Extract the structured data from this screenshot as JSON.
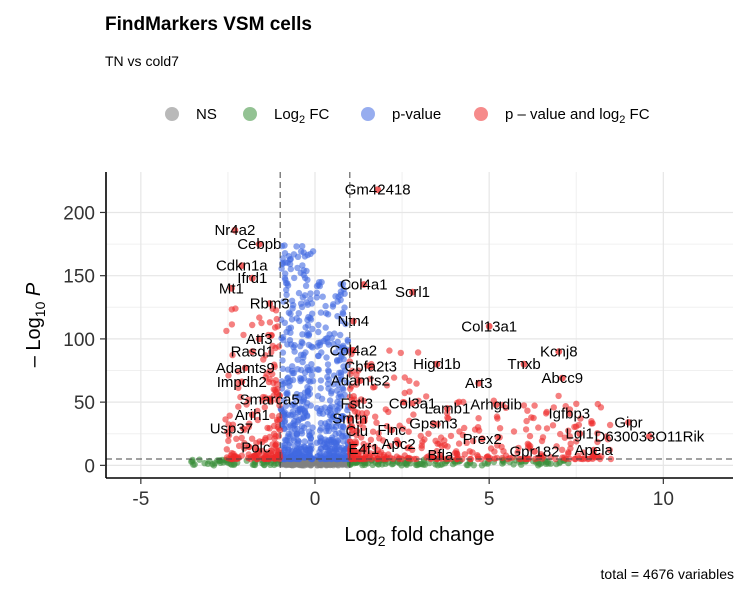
{
  "title": "FindMarkers VSM cells",
  "subtitle": "TN vs cold7",
  "caption": "total = 4676 variables",
  "chart_data": {
    "type": "scatter",
    "title": "FindMarkers VSM cells",
    "subtitle": "TN vs cold7",
    "xlabel": "Log2 fold change",
    "ylabel": "-Log10 P",
    "xlim": [
      -6,
      12
    ],
    "ylim": [
      -10,
      232
    ],
    "x_ticks": [
      -5,
      0,
      5,
      10
    ],
    "y_ticks": [
      0,
      50,
      100,
      150,
      200
    ],
    "fc_cutoff": 1,
    "p_cutoff_neglog10": 5,
    "grid": true,
    "legend_position": "top",
    "colors": {
      "NS": "#808080",
      "Log2FC": "#3b8f3b",
      "pvalue": "#4169e1",
      "both": "#ee2c2c"
    },
    "legend": [
      {
        "key": "NS",
        "label": "NS"
      },
      {
        "key": "Log2FC",
        "label": "Log",
        "sub": "2",
        "suffix": " FC"
      },
      {
        "key": "pvalue",
        "label": "p-value"
      },
      {
        "key": "both",
        "label": "p – value and log",
        "sub": "2",
        "suffix": " FC"
      }
    ],
    "labeled_genes": [
      {
        "name": "Gm42418",
        "x": 1.8,
        "y": 218,
        "color": "both"
      },
      {
        "name": "Nr4a2",
        "x": -2.3,
        "y": 186,
        "color": "both"
      },
      {
        "name": "Cebpb",
        "x": -1.6,
        "y": 175,
        "color": "both"
      },
      {
        "name": "Cdkn1a",
        "x": -2.1,
        "y": 158,
        "color": "both"
      },
      {
        "name": "Ifrd1",
        "x": -1.8,
        "y": 148,
        "color": "both"
      },
      {
        "name": "Mt1",
        "x": -2.4,
        "y": 140,
        "color": "both"
      },
      {
        "name": "Rbm3",
        "x": -1.3,
        "y": 128,
        "color": "both"
      },
      {
        "name": "Atf3",
        "x": -1.6,
        "y": 100,
        "color": "both"
      },
      {
        "name": "Rasd1",
        "x": -1.8,
        "y": 90,
        "color": "both"
      },
      {
        "name": "Adamts9",
        "x": -2.0,
        "y": 77,
        "color": "both"
      },
      {
        "name": "Impdh2",
        "x": -2.1,
        "y": 66,
        "color": "both"
      },
      {
        "name": "Smarca5",
        "x": -1.3,
        "y": 52,
        "color": "both"
      },
      {
        "name": "Arih1",
        "x": -1.8,
        "y": 40,
        "color": "both"
      },
      {
        "name": "Usp37",
        "x": -2.4,
        "y": 29,
        "color": "both"
      },
      {
        "name": "Polc",
        "x": -1.7,
        "y": 14,
        "color": "both"
      },
      {
        "name": "Col4a1",
        "x": 1.4,
        "y": 143,
        "color": "both"
      },
      {
        "name": "Sorl1",
        "x": 2.8,
        "y": 137,
        "color": "both"
      },
      {
        "name": "Ntn4",
        "x": 1.1,
        "y": 114,
        "color": "both"
      },
      {
        "name": "Col4a2",
        "x": 1.1,
        "y": 91,
        "color": "both"
      },
      {
        "name": "Cbfa2t3",
        "x": 1.6,
        "y": 78,
        "color": "both"
      },
      {
        "name": "Adamts2",
        "x": 1.3,
        "y": 67,
        "color": "both"
      },
      {
        "name": "Fstl3",
        "x": 1.2,
        "y": 49,
        "color": "both"
      },
      {
        "name": "Col3a1",
        "x": 2.8,
        "y": 49,
        "color": "both"
      },
      {
        "name": "Smtn",
        "x": 1.0,
        "y": 37,
        "color": "both"
      },
      {
        "name": "Flnc",
        "x": 2.2,
        "y": 28,
        "color": "both"
      },
      {
        "name": "Clu",
        "x": 1.2,
        "y": 27,
        "color": "both"
      },
      {
        "name": "Apc2",
        "x": 2.4,
        "y": 17,
        "color": "both"
      },
      {
        "name": "E4f1",
        "x": 1.4,
        "y": 13,
        "color": "both"
      },
      {
        "name": "Bfla",
        "x": 3.6,
        "y": 8,
        "color": "both"
      },
      {
        "name": "Higd1b",
        "x": 3.5,
        "y": 80,
        "color": "both"
      },
      {
        "name": "Lamb1",
        "x": 3.8,
        "y": 45,
        "color": "both"
      },
      {
        "name": "Gpsm3",
        "x": 3.4,
        "y": 33,
        "color": "both"
      },
      {
        "name": "Prex2",
        "x": 4.8,
        "y": 21,
        "color": "both"
      },
      {
        "name": "Col13a1",
        "x": 5.0,
        "y": 110,
        "color": "both"
      },
      {
        "name": "Art3",
        "x": 4.7,
        "y": 65,
        "color": "both"
      },
      {
        "name": "Arhgdib",
        "x": 5.2,
        "y": 48,
        "color": "both"
      },
      {
        "name": "Tnxb",
        "x": 6.0,
        "y": 80,
        "color": "both"
      },
      {
        "name": "Kcnj8",
        "x": 7.0,
        "y": 90,
        "color": "both"
      },
      {
        "name": "Abcc9",
        "x": 7.1,
        "y": 69,
        "color": "both"
      },
      {
        "name": "Igfbp3",
        "x": 7.3,
        "y": 41,
        "color": "both"
      },
      {
        "name": "Lgi1",
        "x": 7.6,
        "y": 25,
        "color": "both"
      },
      {
        "name": "Gpr182",
        "x": 6.3,
        "y": 11,
        "color": "both"
      },
      {
        "name": "Apela",
        "x": 8.0,
        "y": 12,
        "color": "both"
      },
      {
        "name": "Gipr",
        "x": 9.0,
        "y": 34,
        "color": "both"
      },
      {
        "name": "D630033O11Rik",
        "x": 9.6,
        "y": 23,
        "color": "both"
      }
    ],
    "background_points": {
      "NS_count": 260,
      "Log2FC_count": 180,
      "pvalue_count": 620,
      "both_count": 520,
      "note_seeded": true
    }
  }
}
